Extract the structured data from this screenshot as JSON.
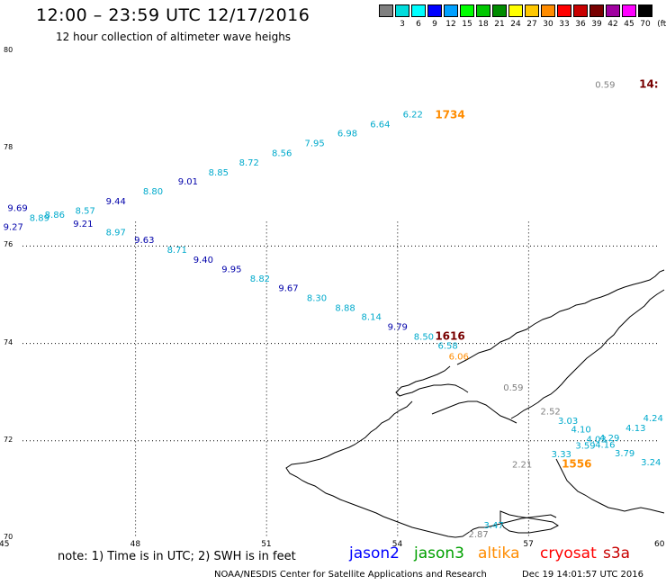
{
  "header": {
    "title": "12:00 – 23:59 UTC 12/17/2016",
    "subtitle": "12 hour collection of altimeter wave heighs"
  },
  "legend": {
    "unit": "(ft)",
    "items": [
      {
        "label": "",
        "color": "#808080"
      },
      {
        "label": "3",
        "color": "#00dcdc"
      },
      {
        "label": "6",
        "color": "#00ffff"
      },
      {
        "label": "9",
        "color": "#0000ff"
      },
      {
        "label": "12",
        "color": "#00a0ff"
      },
      {
        "label": "15",
        "color": "#00ff00"
      },
      {
        "label": "18",
        "color": "#00c800"
      },
      {
        "label": "21",
        "color": "#008c00"
      },
      {
        "label": "24",
        "color": "#ffff00"
      },
      {
        "label": "27",
        "color": "#ffc800"
      },
      {
        "label": "30",
        "color": "#ff8c00"
      },
      {
        "label": "33",
        "color": "#ff0000"
      },
      {
        "label": "36",
        "color": "#c80000"
      },
      {
        "label": "39",
        "color": "#780000"
      },
      {
        "label": "42",
        "color": "#a000a0"
      },
      {
        "label": "45",
        "color": "#ff00ff"
      },
      {
        "label": "70",
        "color": "#000000"
      }
    ]
  },
  "map": {
    "lon_ticks": [
      "45",
      "48",
      "51",
      "54",
      "57",
      "60"
    ],
    "lat_ticks": [
      "70",
      "72",
      "74",
      "76",
      "78",
      "80"
    ],
    "lon_range": [
      45,
      60
    ],
    "lat_range": [
      70,
      80
    ]
  },
  "observations": [
    {
      "text": "9.69",
      "lon": 45.3,
      "lat": 76.72,
      "color": "#0000aa"
    },
    {
      "text": "9.27",
      "lon": 45.2,
      "lat": 76.33,
      "color": "#0000aa"
    },
    {
      "text": "8.89",
      "lon": 45.8,
      "lat": 76.52,
      "color": "#00aacc"
    },
    {
      "text": "8.86",
      "lon": 46.15,
      "lat": 76.58,
      "color": "#00aacc"
    },
    {
      "text": "8.57",
      "lon": 46.85,
      "lat": 76.66,
      "color": "#00aacc"
    },
    {
      "text": "9.21",
      "lon": 46.8,
      "lat": 76.4,
      "color": "#0000aa"
    },
    {
      "text": "9.44",
      "lon": 47.55,
      "lat": 76.86,
      "color": "#0000aa"
    },
    {
      "text": "8.97",
      "lon": 47.55,
      "lat": 76.22,
      "color": "#00aacc"
    },
    {
      "text": "8.80",
      "lon": 48.4,
      "lat": 77.06,
      "color": "#00aacc"
    },
    {
      "text": "9.63",
      "lon": 48.2,
      "lat": 76.06,
      "color": "#0000aa"
    },
    {
      "text": "9.01",
      "lon": 49.2,
      "lat": 77.26,
      "color": "#0000aa"
    },
    {
      "text": "8.71",
      "lon": 48.95,
      "lat": 75.86,
      "color": "#00aacc"
    },
    {
      "text": "8.85",
      "lon": 49.9,
      "lat": 77.45,
      "color": "#00aacc"
    },
    {
      "text": "9.40",
      "lon": 49.55,
      "lat": 75.66,
      "color": "#0000aa"
    },
    {
      "text": "8.72",
      "lon": 50.6,
      "lat": 77.65,
      "color": "#00aacc"
    },
    {
      "text": "9.95",
      "lon": 50.2,
      "lat": 75.46,
      "color": "#0000aa"
    },
    {
      "text": "8.56",
      "lon": 51.35,
      "lat": 77.85,
      "color": "#00aacc"
    },
    {
      "text": "8.82",
      "lon": 50.85,
      "lat": 75.27,
      "color": "#00aacc"
    },
    {
      "text": "7.95",
      "lon": 52.1,
      "lat": 78.05,
      "color": "#00aacc"
    },
    {
      "text": "9.67",
      "lon": 51.5,
      "lat": 75.07,
      "color": "#0000aa"
    },
    {
      "text": "6.98",
      "lon": 52.85,
      "lat": 78.25,
      "color": "#00aacc"
    },
    {
      "text": "8.30",
      "lon": 52.15,
      "lat": 74.87,
      "color": "#00aacc"
    },
    {
      "text": "6.64",
      "lon": 53.6,
      "lat": 78.44,
      "color": "#00aacc"
    },
    {
      "text": "8.88",
      "lon": 52.8,
      "lat": 74.67,
      "color": "#00aacc"
    },
    {
      "text": "6.22",
      "lon": 54.35,
      "lat": 78.64,
      "color": "#00aacc"
    },
    {
      "text": "8.14",
      "lon": 53.4,
      "lat": 74.48,
      "color": "#00aacc"
    },
    {
      "text": "9.79",
      "lon": 54.0,
      "lat": 74.28,
      "color": "#0000aa"
    },
    {
      "text": "8.50",
      "lon": 54.6,
      "lat": 74.08,
      "color": "#00aacc"
    },
    {
      "text": "6.58",
      "lon": 55.15,
      "lat": 73.89,
      "color": "#00aacc"
    },
    {
      "text": "6.06",
      "lon": 55.4,
      "lat": 73.67,
      "color": "#ff8c00"
    },
    {
      "text": "1616",
      "lon": 55.2,
      "lat": 74.08,
      "color": "#780000",
      "bold": true
    },
    {
      "text": "1734",
      "lon": 55.2,
      "lat": 78.62,
      "color": "#ff8c00",
      "bold": true
    },
    {
      "text": "0.59",
      "lon": 58.75,
      "lat": 79.25,
      "color": "#808080"
    },
    {
      "text": "14:",
      "lon": 59.75,
      "lat": 79.25,
      "color": "#780000",
      "bold": true
    },
    {
      "text": "0.59",
      "lon": 56.65,
      "lat": 73.03,
      "color": "#808080"
    },
    {
      "text": "2.52",
      "lon": 57.5,
      "lat": 72.54,
      "color": "#808080"
    },
    {
      "text": "3.03",
      "lon": 57.9,
      "lat": 72.35,
      "color": "#00aacc"
    },
    {
      "text": "4.10",
      "lon": 58.2,
      "lat": 72.17,
      "color": "#00aacc"
    },
    {
      "text": "4.13",
      "lon": 59.45,
      "lat": 72.2,
      "color": "#00aacc"
    },
    {
      "text": "4.24",
      "lon": 59.85,
      "lat": 72.4,
      "color": "#00aacc"
    },
    {
      "text": "4.29",
      "lon": 58.85,
      "lat": 72.0,
      "color": "#00aacc"
    },
    {
      "text": "4.03",
      "lon": 58.55,
      "lat": 71.97,
      "color": "#00aacc"
    },
    {
      "text": "3.59",
      "lon": 58.3,
      "lat": 71.84,
      "color": "#00aacc"
    },
    {
      "text": "4.16",
      "lon": 58.75,
      "lat": 71.86,
      "color": "#00aacc"
    },
    {
      "text": "3.79",
      "lon": 59.2,
      "lat": 71.68,
      "color": "#00aacc"
    },
    {
      "text": "3.33",
      "lon": 57.75,
      "lat": 71.66,
      "color": "#00aacc"
    },
    {
      "text": "3.24",
      "lon": 59.8,
      "lat": 71.5,
      "color": "#00aacc"
    },
    {
      "text": "2.21",
      "lon": 56.85,
      "lat": 71.45,
      "color": "#808080"
    },
    {
      "text": "1556",
      "lon": 58.1,
      "lat": 71.45,
      "color": "#ff8c00",
      "bold": true
    },
    {
      "text": "3.47",
      "lon": 56.2,
      "lat": 70.2,
      "color": "#00aacc"
    },
    {
      "text": "2.87",
      "lon": 55.85,
      "lat": 70.02,
      "color": "#808080"
    }
  ],
  "footer": {
    "note": "note: 1) Time is in UTC; 2) SWH is in feet",
    "missions": [
      {
        "name": "jason2",
        "color": "#0000ff"
      },
      {
        "name": "jason3",
        "color": "#00a000"
      },
      {
        "name": "altika",
        "color": "#ff8c00"
      },
      {
        "name": "cryosat",
        "color": "#ff0000"
      },
      {
        "name": "s3a",
        "color": "#c80000"
      }
    ],
    "credit": "NOAA/NESDIS Center for Satellite Applications and Research",
    "timestamp": "Dec 19 14:01:57 UTC 2016"
  }
}
